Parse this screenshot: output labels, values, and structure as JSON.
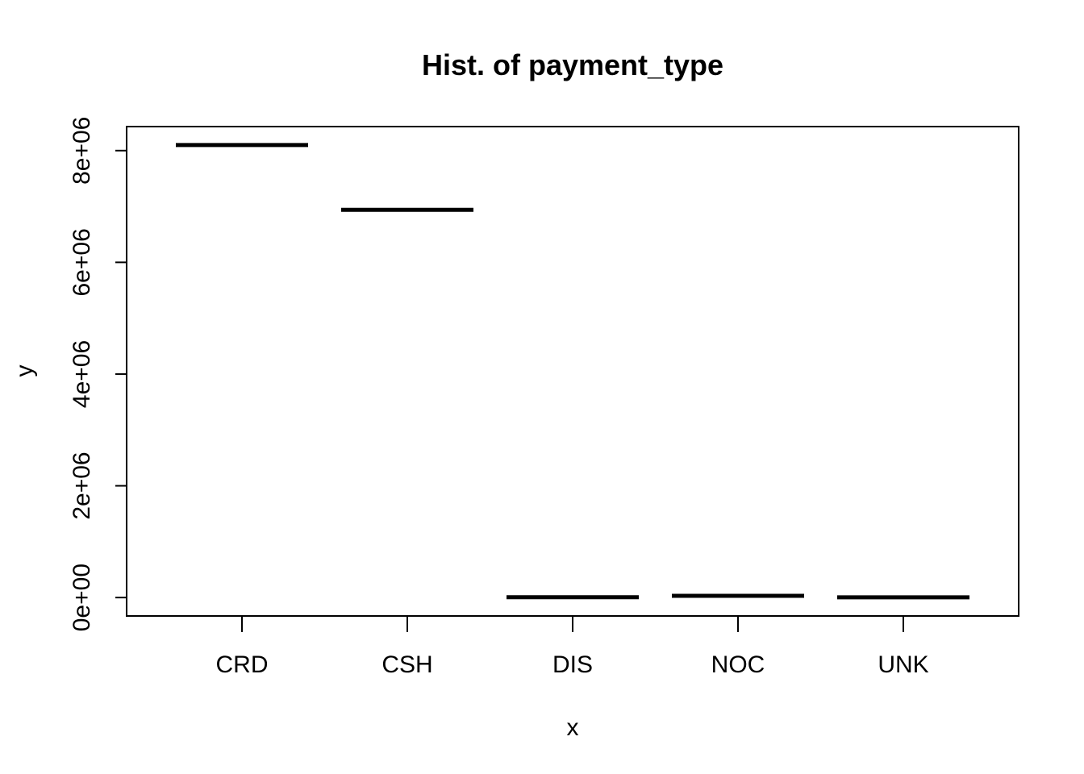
{
  "chart_data": {
    "type": "bar",
    "title": "Hist. of payment_type",
    "xlabel": "x",
    "ylabel": "y",
    "categories": [
      "CRD",
      "CSH",
      "DIS",
      "NOC",
      "UNK"
    ],
    "values": [
      8100000,
      6940000,
      5000,
      30000,
      3000
    ],
    "ylim": [
      -330000,
      8430000
    ],
    "y_ticks": [
      0,
      2000000,
      4000000,
      6000000,
      8000000
    ],
    "y_tick_labels": [
      "0e+00",
      "2e+06",
      "4e+06",
      "6e+06",
      "8e+06"
    ],
    "grid": false,
    "legend": "none",
    "colors": {
      "line": "#000000",
      "background": "#ffffff"
    }
  }
}
